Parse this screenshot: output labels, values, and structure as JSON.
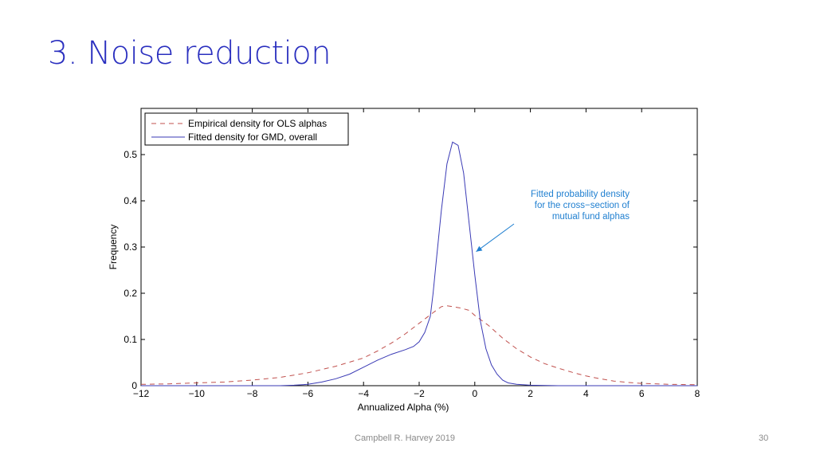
{
  "slide": {
    "title": "3. Noise reduction",
    "footer_author": "Campbell R. Harvey 2019",
    "page_number": "30"
  },
  "colors": {
    "title": "#2a2fbf",
    "empirical": "#c0504d",
    "fitted": "#3a3ab5",
    "annotation": "#1f7fd0"
  },
  "chart_data": {
    "type": "line",
    "title": "",
    "xlabel": "Annualized Alpha (%)",
    "ylabel": "Frequency",
    "xlim": [
      -12,
      8
    ],
    "ylim": [
      0,
      0.6
    ],
    "xticks": [
      -12,
      -10,
      -8,
      -6,
      -4,
      -2,
      0,
      2,
      4,
      6,
      8
    ],
    "xtick_labels": [
      "−12",
      "−10",
      "−8",
      "−6",
      "−4",
      "−2",
      "0",
      "2",
      "4",
      "6",
      "8"
    ],
    "yticks": [
      0,
      0.1,
      0.2,
      0.3,
      0.4,
      0.5
    ],
    "ytick_labels": [
      "0",
      "0.1",
      "0.2",
      "0.3",
      "0.4",
      "0.5"
    ],
    "legend_position": "top-left",
    "series": [
      {
        "name": "Empirical density for OLS alphas",
        "style": "dashed",
        "points": [
          [
            -12,
            0.003
          ],
          [
            -11,
            0.004
          ],
          [
            -10,
            0.006
          ],
          [
            -9,
            0.008
          ],
          [
            -8,
            0.012
          ],
          [
            -7,
            0.018
          ],
          [
            -6,
            0.028
          ],
          [
            -5,
            0.042
          ],
          [
            -4,
            0.06
          ],
          [
            -3.5,
            0.075
          ],
          [
            -3,
            0.092
          ],
          [
            -2.5,
            0.112
          ],
          [
            -2,
            0.135
          ],
          [
            -1.5,
            0.158
          ],
          [
            -1.2,
            0.171
          ],
          [
            -1,
            0.173
          ],
          [
            -0.8,
            0.171
          ],
          [
            -0.5,
            0.168
          ],
          [
            -0.2,
            0.163
          ],
          [
            0,
            0.152
          ],
          [
            0.5,
            0.13
          ],
          [
            1,
            0.103
          ],
          [
            1.5,
            0.08
          ],
          [
            2,
            0.062
          ],
          [
            2.5,
            0.048
          ],
          [
            3,
            0.038
          ],
          [
            3.5,
            0.029
          ],
          [
            4,
            0.021
          ],
          [
            4.5,
            0.015
          ],
          [
            5,
            0.01
          ],
          [
            5.5,
            0.007
          ],
          [
            6,
            0.005
          ],
          [
            7,
            0.003
          ],
          [
            8,
            0.002
          ]
        ]
      },
      {
        "name": "Fitted density for GMD, overall",
        "style": "solid",
        "points": [
          [
            -12,
            0.0
          ],
          [
            -8,
            0.0
          ],
          [
            -7,
            0.0
          ],
          [
            -6.5,
            0.001
          ],
          [
            -6,
            0.003
          ],
          [
            -5.5,
            0.008
          ],
          [
            -5,
            0.015
          ],
          [
            -4.5,
            0.025
          ],
          [
            -4,
            0.04
          ],
          [
            -3.5,
            0.055
          ],
          [
            -3,
            0.068
          ],
          [
            -2.5,
            0.078
          ],
          [
            -2.2,
            0.085
          ],
          [
            -2,
            0.095
          ],
          [
            -1.8,
            0.115
          ],
          [
            -1.6,
            0.15
          ],
          [
            -1.5,
            0.2
          ],
          [
            -1.4,
            0.26
          ],
          [
            -1.2,
            0.38
          ],
          [
            -1.0,
            0.48
          ],
          [
            -0.8,
            0.527
          ],
          [
            -0.6,
            0.52
          ],
          [
            -0.4,
            0.46
          ],
          [
            -0.2,
            0.35
          ],
          [
            0,
            0.24
          ],
          [
            0.2,
            0.14
          ],
          [
            0.4,
            0.08
          ],
          [
            0.6,
            0.045
          ],
          [
            0.8,
            0.025
          ],
          [
            1.0,
            0.012
          ],
          [
            1.2,
            0.006
          ],
          [
            1.5,
            0.003
          ],
          [
            2,
            0.001
          ],
          [
            3,
            0.0
          ],
          [
            8,
            0.0
          ]
        ]
      }
    ],
    "annotation": {
      "text_lines": [
        "Fitted probability density",
        "for the cross−section of",
        "mutual fund alphas"
      ],
      "arrow_target": [
        0.05,
        0.29
      ]
    }
  }
}
